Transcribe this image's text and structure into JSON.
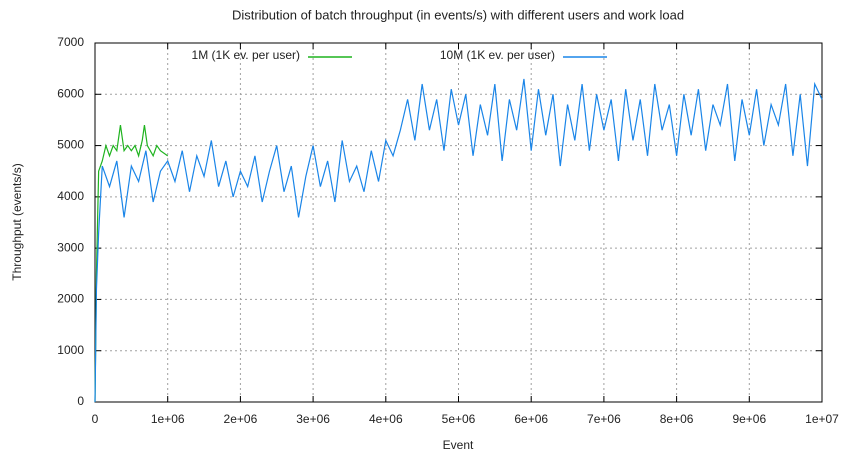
{
  "chart_data": {
    "type": "line",
    "title": "Distribution of batch throughput (in events/s) with different users and work load",
    "x_label": "Event",
    "y_label": "Throughput (events/s)",
    "xlim": [
      0,
      10000000
    ],
    "ylim": [
      0,
      7000
    ],
    "xticks": [
      0,
      {
        "value": 1000000,
        "label": "1e+06"
      },
      {
        "value": 2000000,
        "label": "2e+06"
      },
      {
        "value": 3000000,
        "label": "3e+06"
      },
      {
        "value": 4000000,
        "label": "4e+06"
      },
      {
        "value": 5000000,
        "label": "5e+06"
      },
      {
        "value": 6000000,
        "label": "6e+06"
      },
      {
        "value": 7000000,
        "label": "7e+06"
      },
      {
        "value": 8000000,
        "label": "8e+06"
      },
      {
        "value": 9000000,
        "label": "9e+06"
      },
      {
        "value": 10000000,
        "label": "1e+07"
      }
    ],
    "yticks": [
      0,
      1000,
      2000,
      3000,
      4000,
      5000,
      6000,
      7000
    ],
    "grid": true,
    "series": [
      {
        "name": "1M (1K ev. per user)",
        "color": "#1fb31f",
        "x": [
          0,
          20000,
          50000,
          100000,
          150000,
          200000,
          250000,
          300000,
          350000,
          400000,
          450000,
          500000,
          550000,
          600000,
          650000,
          680000,
          720000,
          800000,
          850000,
          900000,
          1000000
        ],
        "values": [
          0,
          2500,
          4500,
          4700,
          5000,
          4800,
          5000,
          4900,
          5400,
          4900,
          5000,
          4900,
          5000,
          4800,
          5100,
          5400,
          5000,
          4800,
          5000,
          4900,
          4800
        ]
      },
      {
        "name": "10M (1K ev. per user)",
        "color": "#1a85e8",
        "x": [
          0,
          20000,
          50000,
          100000,
          200000,
          300000,
          400000,
          500000,
          600000,
          700000,
          800000,
          900000,
          1000000,
          1100000,
          1200000,
          1300000,
          1400000,
          1500000,
          1600000,
          1700000,
          1800000,
          1900000,
          2000000,
          2100000,
          2200000,
          2300000,
          2400000,
          2500000,
          2600000,
          2700000,
          2800000,
          2900000,
          3000000,
          3100000,
          3200000,
          3300000,
          3400000,
          3500000,
          3600000,
          3700000,
          3800000,
          3900000,
          4000000,
          4100000,
          4200000,
          4300000,
          4400000,
          4500000,
          4600000,
          4700000,
          4800000,
          4900000,
          5000000,
          5100000,
          5200000,
          5300000,
          5400000,
          5500000,
          5600000,
          5700000,
          5800000,
          5900000,
          6000000,
          6100000,
          6200000,
          6300000,
          6400000,
          6500000,
          6600000,
          6700000,
          6800000,
          6900000,
          7000000,
          7100000,
          7200000,
          7300000,
          7400000,
          7500000,
          7600000,
          7700000,
          7800000,
          7900000,
          8000000,
          8100000,
          8200000,
          8300000,
          8400000,
          8500000,
          8600000,
          8700000,
          8800000,
          8900000,
          9000000,
          9100000,
          9200000,
          9300000,
          9400000,
          9500000,
          9600000,
          9700000,
          9800000,
          9900000,
          10000000
        ],
        "values": [
          0,
          2200,
          3300,
          4600,
          4200,
          4700,
          3600,
          4600,
          4300,
          4900,
          3900,
          4500,
          4700,
          4300,
          4900,
          4100,
          4800,
          4400,
          5100,
          4200,
          4700,
          4000,
          4500,
          4200,
          4800,
          3900,
          4500,
          5000,
          4100,
          4600,
          3600,
          4400,
          5000,
          4200,
          4700,
          3900,
          5100,
          4300,
          4600,
          4100,
          4900,
          4300,
          5100,
          4800,
          5300,
          5900,
          5100,
          6200,
          5300,
          5900,
          4900,
          6100,
          5400,
          6000,
          4800,
          5800,
          5200,
          6200,
          4700,
          5900,
          5300,
          6300,
          4900,
          6100,
          5200,
          6000,
          4600,
          5800,
          5100,
          6200,
          4900,
          6000,
          5300,
          5900,
          4700,
          6100,
          5100,
          5900,
          4800,
          6200,
          5300,
          5800,
          4800,
          6000,
          5200,
          6100,
          4900,
          5800,
          5400,
          6200,
          4700,
          5900,
          5200,
          6100,
          5000,
          5800,
          5400,
          6200,
          4800,
          6000,
          4600,
          6200,
          5900
        ]
      }
    ]
  }
}
